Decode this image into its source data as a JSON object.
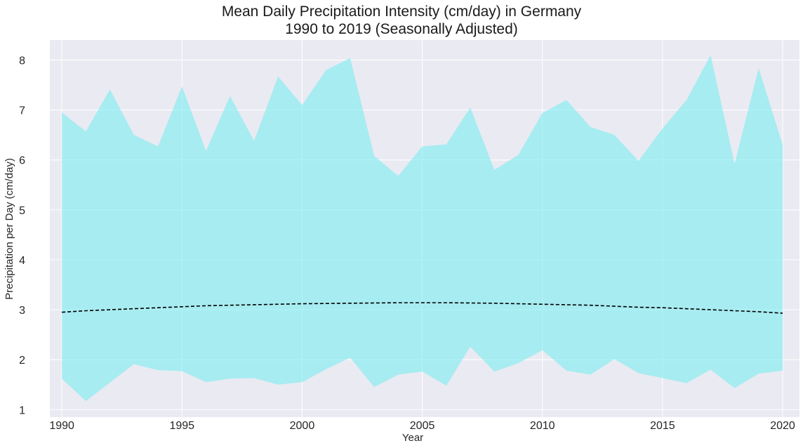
{
  "chart_data": {
    "type": "area",
    "title": "Mean Daily Precipitation Intensity (cm/day) in Germany",
    "subtitle": "1990 to 2019 (Seasonally Adjusted)",
    "xlabel": "Year",
    "ylabel": "Precipitation per Day (cm/day)",
    "xlim": [
      1989.5,
      2020.7
    ],
    "ylim": [
      0.85,
      8.4
    ],
    "xticks": [
      1990,
      1995,
      2000,
      2005,
      2010,
      2015,
      2020
    ],
    "yticks": [
      1,
      2,
      3,
      4,
      5,
      6,
      7,
      8
    ],
    "grid": true,
    "colors": {
      "band": "#7eeef0",
      "trend": "#000000",
      "background": "#eaeaf2",
      "grid": "#ffffff"
    },
    "x": [
      1990,
      1991,
      1992,
      1993,
      1994,
      1995,
      1996,
      1997,
      1998,
      1999,
      2000,
      2001,
      2002,
      2003,
      2004,
      2005,
      2006,
      2007,
      2008,
      2009,
      2010,
      2011,
      2012,
      2013,
      2014,
      2015,
      2016,
      2017,
      2018,
      2019,
      2020
    ],
    "series": [
      {
        "role": "band-upper",
        "values": [
          6.95,
          6.57,
          7.41,
          6.5,
          6.27,
          7.47,
          6.18,
          7.28,
          6.38,
          7.67,
          7.1,
          7.8,
          8.04,
          6.08,
          5.68,
          6.27,
          6.31,
          7.05,
          5.8,
          6.1,
          6.94,
          7.2,
          6.66,
          6.5,
          5.98,
          6.63,
          7.2,
          8.1,
          5.92,
          7.84,
          6.3
        ]
      },
      {
        "role": "band-lower",
        "values": [
          1.62,
          1.17,
          1.54,
          1.91,
          1.79,
          1.77,
          1.55,
          1.62,
          1.63,
          1.5,
          1.55,
          1.81,
          2.04,
          1.45,
          1.7,
          1.76,
          1.48,
          2.26,
          1.76,
          1.93,
          2.19,
          1.78,
          1.7,
          2.01,
          1.73,
          1.63,
          1.53,
          1.8,
          1.43,
          1.72,
          1.78
        ]
      },
      {
        "role": "trend",
        "style": "dashed",
        "values": [
          2.95,
          2.98,
          3.0,
          3.02,
          3.04,
          3.06,
          3.08,
          3.09,
          3.1,
          3.11,
          3.12,
          3.125,
          3.13,
          3.135,
          3.14,
          3.14,
          3.14,
          3.135,
          3.13,
          3.12,
          3.11,
          3.1,
          3.09,
          3.07,
          3.05,
          3.04,
          3.02,
          3.0,
          2.98,
          2.96,
          2.93
        ]
      }
    ]
  }
}
